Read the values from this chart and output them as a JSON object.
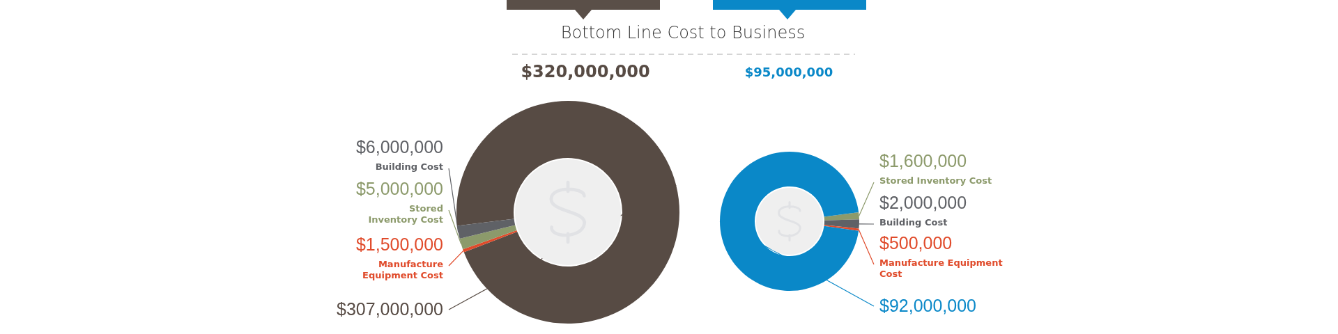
{
  "chart_data": [
    {
      "type": "donut",
      "title": "Bottom Line Cost to Business",
      "annotations": [
        "$320,000,000"
      ],
      "categories": [
        null,
        "Manufacture Equipment Cost",
        "Stored Inventory Cost",
        "Building Cost"
      ],
      "values": [
        307000000,
        1500000,
        5000000,
        6000000
      ],
      "colors": [
        "#574b44",
        "#e04b2b",
        "#8c9a6b",
        "#5f6166"
      ],
      "value_labels": [
        "$307,000,000",
        "$1,500,000",
        "$5,000,000",
        "$6,000,000"
      ]
    },
    {
      "type": "donut",
      "annotations": [
        "$95,000,000"
      ],
      "categories": [
        "Stored Inventory Cost",
        "Building Cost",
        "Manufacture Equipment Cost",
        null
      ],
      "values": [
        1600000,
        2000000,
        500000,
        92000000
      ],
      "colors": [
        "#8c9a6b",
        "#5f6166",
        "#e04b2b",
        "#0a88c8"
      ],
      "value_labels": [
        "$1,600,000",
        "$2,000,000",
        "$500,000",
        "$92,000,000"
      ]
    }
  ]
}
